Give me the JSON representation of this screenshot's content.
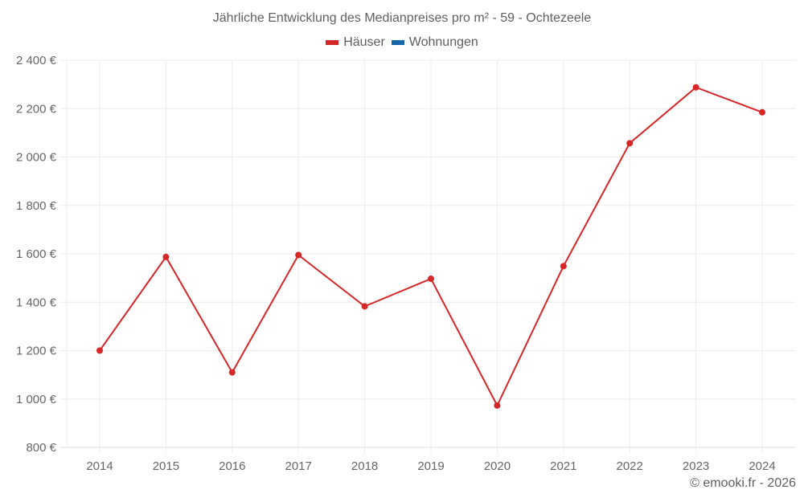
{
  "chart_data": {
    "type": "line",
    "title": "Jährliche Entwicklung des Medianpreises pro m² - 59 - Ochtezeele",
    "xlabel": "",
    "ylabel": "",
    "categories": [
      "2014",
      "2015",
      "2016",
      "2017",
      "2018",
      "2019",
      "2020",
      "2021",
      "2022",
      "2023",
      "2024"
    ],
    "series": [
      {
        "name": "Häuser",
        "color": "#d62728",
        "values": [
          1200,
          1587,
          1110,
          1595,
          1383,
          1497,
          973,
          1549,
          2057,
          2288,
          2185
        ]
      },
      {
        "name": "Wohnungen",
        "color": "#1565a8",
        "values": []
      }
    ],
    "ylim": [
      800,
      2400
    ],
    "yticks": [
      800,
      1000,
      1200,
      1400,
      1600,
      1800,
      2000,
      2200,
      2400
    ],
    "ytick_labels": [
      "800 €",
      "1 000 €",
      "1 200 €",
      "1 400 €",
      "1 600 €",
      "1 800 €",
      "2 000 €",
      "2 200 €",
      "2 400 €"
    ],
    "grid": true,
    "legend_position": "top"
  },
  "legend": {
    "items": [
      {
        "label": "Häuser",
        "color": "#d62728"
      },
      {
        "label": "Wohnungen",
        "color": "#1565a8"
      }
    ]
  },
  "credit": "© emooki.fr - 2026"
}
